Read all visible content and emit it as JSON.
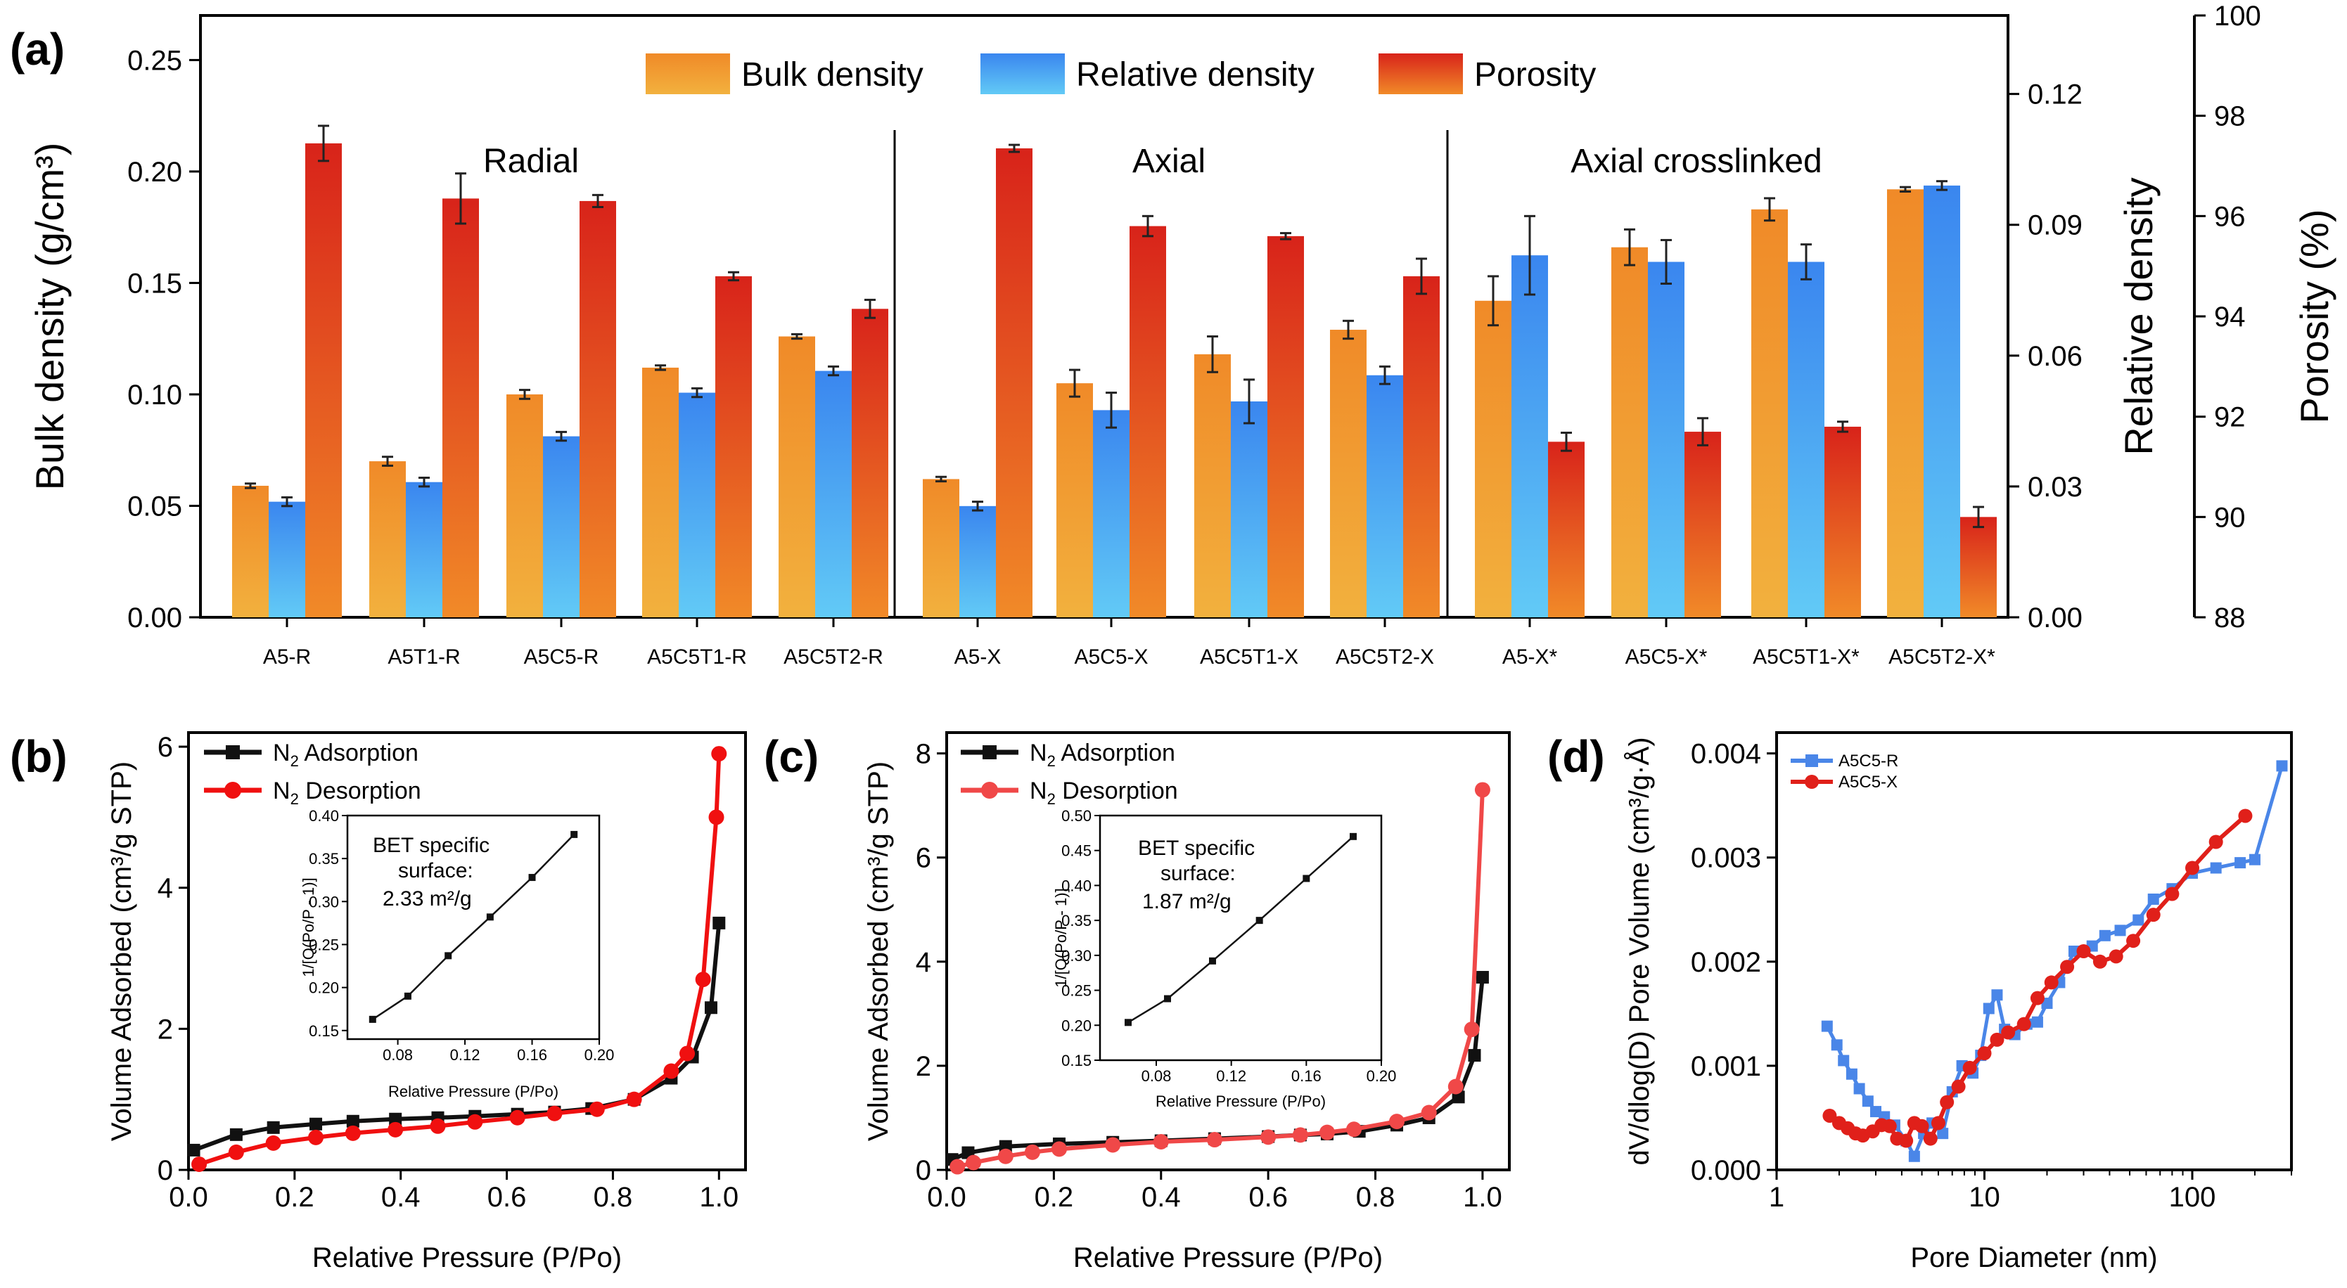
{
  "panels": {
    "a": "(a)",
    "b": "(b)",
    "c": "(c)",
    "d": "(d)"
  },
  "colors": {
    "bulk_top": "#f0a240",
    "bulk_bottom": "#f07a1e",
    "rel_top": "#3d8ef0",
    "rel_bottom": "#60c6f5",
    "por_top": "#d9261a",
    "por_bottom": "#f07d25",
    "ads": "#111111",
    "des_b": "#f01010",
    "des_c": "#f04848",
    "ser_d1": "#4a86e8",
    "ser_d2": "#e0201a"
  },
  "chart_data": [
    {
      "id": "a",
      "type": "bar",
      "legend": [
        "Bulk density",
        "Relative density",
        "Porosity"
      ],
      "groups": [
        "Radial",
        "Axial",
        "Axial crosslinked"
      ],
      "categories": [
        "A5-R",
        "A5T1-R",
        "A5C5-R",
        "A5C5T1-R",
        "A5C5T2-R",
        "A5-X",
        "A5C5-X",
        "A5C5T1-X",
        "A5C5T2-X",
        "A5-X*",
        "A5C5-X*",
        "A5C5T1-X*",
        "A5C5T2-X*"
      ],
      "ylabel": "Bulk density (g/cm³)",
      "y2label": "Relative density",
      "y3label": "Porosity (%)",
      "ylim": [
        0,
        0.27
      ],
      "y2lim": [
        0,
        0.138
      ],
      "y3lim": [
        88,
        100
      ],
      "yticks": [
        "0.00",
        "0.05",
        "0.10",
        "0.15",
        "0.20",
        "0.25"
      ],
      "y2ticks": [
        "0.00",
        "0.03",
        "0.06",
        "0.09",
        "0.12"
      ],
      "y3ticks": [
        "88",
        "90",
        "92",
        "94",
        "96",
        "98",
        "100"
      ],
      "series": [
        {
          "name": "Bulk density",
          "values": [
            0.059,
            0.07,
            0.1,
            0.112,
            0.126,
            0.062,
            0.105,
            0.118,
            0.129,
            0.142,
            0.166,
            0.183,
            0.192
          ],
          "errors": [
            0.001,
            0.002,
            0.002,
            0.001,
            0.001,
            0.001,
            0.006,
            0.008,
            0.004,
            0.011,
            0.008,
            0.005,
            0.001
          ]
        },
        {
          "name": "Relative density",
          "values": [
            0.0265,
            0.031,
            0.0415,
            0.0515,
            0.0565,
            0.0255,
            0.0475,
            0.0495,
            0.0555,
            0.083,
            0.0815,
            0.0815,
            0.099
          ],
          "errors": [
            0.001,
            0.001,
            0.001,
            0.001,
            0.001,
            0.001,
            0.004,
            0.005,
            0.002,
            0.009,
            0.005,
            0.004,
            0.001
          ]
        },
        {
          "name": "Porosity",
          "values": [
            97.45,
            96.35,
            96.3,
            94.8,
            94.15,
            97.35,
            95.8,
            95.6,
            94.8,
            91.5,
            91.7,
            91.8,
            90.0
          ],
          "errors": [
            0.35,
            0.5,
            0.12,
            0.08,
            0.18,
            0.07,
            0.2,
            0.06,
            0.35,
            0.18,
            0.27,
            0.1,
            0.2
          ]
        }
      ]
    },
    {
      "id": "b",
      "type": "line",
      "xlabel": "Relative Pressure (P/Po)",
      "ylabel": "Volume Adsorbed (cm³/g STP)",
      "xlim": [
        0,
        1.05
      ],
      "ylim": [
        0,
        6.2
      ],
      "xticks": [
        "0.0",
        "0.2",
        "0.4",
        "0.6",
        "0.8",
        "1.0"
      ],
      "yticks": [
        "0",
        "2",
        "4",
        "6"
      ],
      "legend": [
        "N2 Adsorption",
        "N2 Desorption"
      ],
      "series": [
        {
          "name": "N2 Adsorption",
          "x": [
            0.01,
            0.09,
            0.16,
            0.24,
            0.31,
            0.39,
            0.47,
            0.54,
            0.62,
            0.69,
            0.76,
            0.84,
            0.91,
            0.95,
            0.985,
            1.0
          ],
          "y": [
            0.28,
            0.5,
            0.6,
            0.65,
            0.69,
            0.72,
            0.74,
            0.76,
            0.79,
            0.82,
            0.87,
            1.0,
            1.3,
            1.6,
            2.3,
            3.5
          ]
        },
        {
          "name": "N2 Desorption",
          "x": [
            1.0,
            0.995,
            0.97,
            0.94,
            0.91,
            0.84,
            0.77,
            0.69,
            0.62,
            0.54,
            0.47,
            0.39,
            0.31,
            0.24,
            0.16,
            0.09,
            0.02
          ],
          "y": [
            5.9,
            5.0,
            2.7,
            1.65,
            1.4,
            1.0,
            0.86,
            0.8,
            0.74,
            0.68,
            0.62,
            0.57,
            0.52,
            0.46,
            0.38,
            0.25,
            0.08
          ]
        }
      ],
      "inset": {
        "text": [
          "BET specific",
          "surface:",
          "2.33 m²/g"
        ],
        "xlabel": "Relative Pressure (P/Po)",
        "ylabel": "1/[Q(Po/P - 1)]",
        "xlim": [
          0.05,
          0.2
        ],
        "ylim": [
          0.14,
          0.4
        ],
        "xticks": [
          "0.08",
          "0.12",
          "0.16",
          "0.20"
        ],
        "yticks": [
          "0.15",
          "0.20",
          "0.25",
          "0.30",
          "0.35",
          "0.40"
        ],
        "x": [
          0.065,
          0.086,
          0.11,
          0.135,
          0.16,
          0.185
        ],
        "y": [
          0.163,
          0.19,
          0.237,
          0.282,
          0.328,
          0.378
        ]
      }
    },
    {
      "id": "c",
      "type": "line",
      "xlabel": "Relative Pressure (P/Po)",
      "ylabel": "Volume Adsorbed (cm³/g STP)",
      "xlim": [
        0,
        1.05
      ],
      "ylim": [
        0,
        8.4
      ],
      "xticks": [
        "0.0",
        "0.2",
        "0.4",
        "0.6",
        "0.8",
        "1.0"
      ],
      "yticks": [
        "0",
        "2",
        "4",
        "6",
        "8"
      ],
      "legend": [
        "N2 Adsorption",
        "N2 Desorption"
      ],
      "series": [
        {
          "name": "N2 Adsorption",
          "x": [
            0.01,
            0.04,
            0.11,
            0.21,
            0.31,
            0.4,
            0.5,
            0.6,
            0.66,
            0.71,
            0.77,
            0.84,
            0.9,
            0.955,
            0.985,
            1.0
          ],
          "y": [
            0.2,
            0.33,
            0.45,
            0.5,
            0.53,
            0.56,
            0.6,
            0.64,
            0.67,
            0.69,
            0.74,
            0.86,
            1.0,
            1.4,
            2.2,
            3.7
          ]
        },
        {
          "name": "N2 Desorption",
          "x": [
            1.0,
            0.98,
            0.95,
            0.9,
            0.84,
            0.76,
            0.71,
            0.66,
            0.6,
            0.5,
            0.4,
            0.31,
            0.21,
            0.16,
            0.11,
            0.05,
            0.02
          ],
          "y": [
            7.3,
            2.7,
            1.6,
            1.1,
            0.93,
            0.78,
            0.72,
            0.67,
            0.63,
            0.58,
            0.54,
            0.48,
            0.4,
            0.34,
            0.26,
            0.14,
            0.06
          ]
        }
      ],
      "inset": {
        "text": [
          "BET specific",
          "surface:",
          "1.87 m²/g"
        ],
        "xlabel": "Relative Pressure (P/Po)",
        "ylabel": "1/[Q(Po/P - 1)]",
        "xlim": [
          0.05,
          0.2
        ],
        "ylim": [
          0.15,
          0.5
        ],
        "xticks": [
          "0.08",
          "0.12",
          "0.16",
          "0.20"
        ],
        "yticks": [
          "0.15",
          "0.20",
          "0.25",
          "0.30",
          "0.35",
          "0.40",
          "0.45",
          "0.50"
        ],
        "x": [
          0.065,
          0.086,
          0.11,
          0.135,
          0.16,
          0.185
        ],
        "y": [
          0.204,
          0.238,
          0.292,
          0.35,
          0.41,
          0.47
        ]
      }
    },
    {
      "id": "d",
      "type": "line",
      "xscale": "log",
      "xlabel": "Pore Diameter (nm)",
      "ylabel": "dV/dlog(D) Pore Volume (cm³/g·Å)",
      "xlim": [
        1,
        300
      ],
      "ylim": [
        0,
        0.0042
      ],
      "xticks": [
        "1",
        "10",
        "100"
      ],
      "yticks": [
        "0.000",
        "0.001",
        "0.002",
        "0.003",
        "0.004"
      ],
      "legend": [
        "A5C5-R",
        "A5C5-X"
      ],
      "series": [
        {
          "name": "A5C5-R",
          "x": [
            1.75,
            1.95,
            2.1,
            2.3,
            2.5,
            2.75,
            3.0,
            3.3,
            3.7,
            4.2,
            4.6,
            5.1,
            5.6,
            6.3,
            7.0,
            7.8,
            8.8,
            9.6,
            10.5,
            11.5,
            12.5,
            14,
            16,
            18,
            20,
            23,
            27,
            30,
            33,
            38,
            45,
            55,
            65,
            80,
            100,
            130,
            170,
            200,
            270
          ],
          "y": [
            0.00138,
            0.0012,
            0.00105,
            0.00092,
            0.00078,
            0.00066,
            0.00056,
            0.00051,
            0.00043,
            0.00028,
            0.00013,
            0.00035,
            0.00045,
            0.00035,
            0.00075,
            0.001,
            0.00093,
            0.0011,
            0.00155,
            0.00168,
            0.00135,
            0.0013,
            0.0014,
            0.00142,
            0.0016,
            0.0018,
            0.0021,
            0.0021,
            0.00215,
            0.00225,
            0.0023,
            0.0024,
            0.0026,
            0.0027,
            0.00285,
            0.0029,
            0.00295,
            0.00298,
            0.00388
          ]
        },
        {
          "name": "A5C5-X",
          "x": [
            1.8,
            2.0,
            2.2,
            2.4,
            2.6,
            2.9,
            3.2,
            3.5,
            3.8,
            4.2,
            4.6,
            5.0,
            5.5,
            6.0,
            6.6,
            7.5,
            8.5,
            10,
            11.5,
            13,
            15.5,
            18,
            21,
            25,
            30,
            36,
            43,
            52,
            65,
            80,
            100,
            130,
            180
          ],
          "y": [
            0.00052,
            0.00045,
            0.0004,
            0.00035,
            0.00033,
            0.00037,
            0.00043,
            0.00042,
            0.0003,
            0.00028,
            0.00045,
            0.00042,
            0.0003,
            0.00045,
            0.00065,
            0.0008,
            0.00098,
            0.00112,
            0.00125,
            0.00132,
            0.0014,
            0.00165,
            0.0018,
            0.00195,
            0.0021,
            0.002,
            0.00205,
            0.0022,
            0.00245,
            0.00265,
            0.0029,
            0.00315,
            0.0034
          ]
        }
      ]
    }
  ]
}
